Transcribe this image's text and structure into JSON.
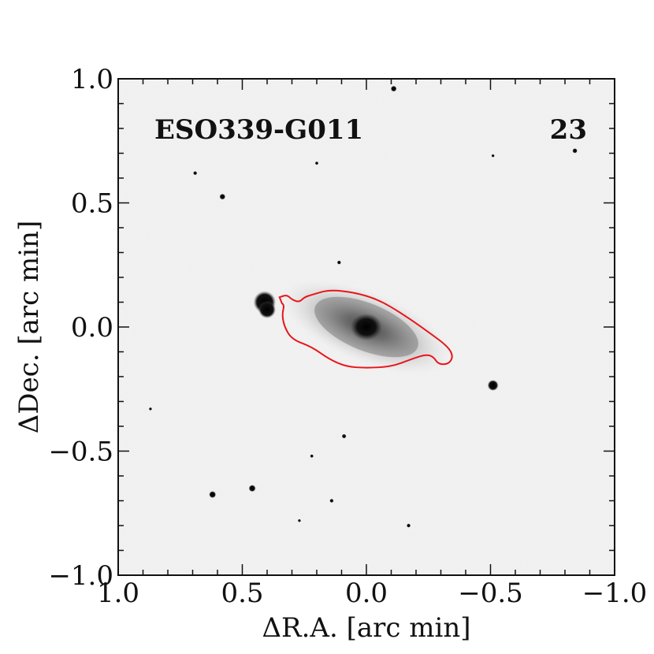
{
  "chart_data": {
    "type": "image",
    "object_name": "ESO339-G011",
    "panel_number": "23",
    "xlabel": "ΔR.A. [arc min]",
    "ylabel": "ΔDec. [arc min]",
    "xlim": [
      1.0,
      -1.0
    ],
    "ylim": [
      -1.0,
      1.0
    ],
    "x_ticks": [
      {
        "value": 1.0,
        "label": "1.0"
      },
      {
        "value": 0.5,
        "label": "0.5"
      },
      {
        "value": 0.0,
        "label": "0.0"
      },
      {
        "value": -0.5,
        "label": "−0.5"
      },
      {
        "value": -1.0,
        "label": "−1.0"
      }
    ],
    "y_ticks": [
      {
        "value": 1.0,
        "label": "1.0"
      },
      {
        "value": 0.5,
        "label": "0.5"
      },
      {
        "value": 0.0,
        "label": "0.0"
      },
      {
        "value": -0.5,
        "label": "−0.5"
      },
      {
        "value": -1.0,
        "label": "−1.0"
      }
    ],
    "contour_color": "#e8161b",
    "stars": [
      {
        "ra": 0.41,
        "dec": 0.1,
        "r": 0.045
      },
      {
        "ra": 0.4,
        "dec": 0.07,
        "r": 0.035
      },
      {
        "ra": -0.51,
        "dec": -0.235,
        "r": 0.022
      },
      {
        "ra": -0.11,
        "dec": 0.96,
        "r": 0.012
      },
      {
        "ra": -0.84,
        "dec": 0.71,
        "r": 0.01
      },
      {
        "ra": 0.58,
        "dec": 0.525,
        "r": 0.012
      },
      {
        "ra": 0.69,
        "dec": 0.62,
        "r": 0.008
      },
      {
        "ra": 0.2,
        "dec": 0.66,
        "r": 0.007
      },
      {
        "ra": 0.11,
        "dec": 0.26,
        "r": 0.008
      },
      {
        "ra": 0.09,
        "dec": -0.44,
        "r": 0.009
      },
      {
        "ra": 0.22,
        "dec": -0.52,
        "r": 0.007
      },
      {
        "ra": 0.14,
        "dec": -0.7,
        "r": 0.008
      },
      {
        "ra": 0.46,
        "dec": -0.65,
        "r": 0.014
      },
      {
        "ra": 0.62,
        "dec": -0.675,
        "r": 0.014
      },
      {
        "ra": -0.17,
        "dec": -0.8,
        "r": 0.008
      },
      {
        "ra": 0.87,
        "dec": -0.33,
        "r": 0.005
      },
      {
        "ra": -0.51,
        "dec": 0.69,
        "r": 0.005
      },
      {
        "ra": 0.27,
        "dec": -0.78,
        "r": 0.005
      }
    ],
    "contour_points": [
      [
        0.35,
        0.12
      ],
      [
        0.32,
        0.13
      ],
      [
        0.3,
        0.11
      ],
      [
        0.27,
        0.1
      ],
      [
        0.25,
        0.12
      ],
      [
        0.22,
        0.13
      ],
      [
        0.15,
        0.15
      ],
      [
        0.05,
        0.14
      ],
      [
        -0.05,
        0.11
      ],
      [
        -0.15,
        0.05
      ],
      [
        -0.25,
        -0.02
      ],
      [
        -0.33,
        -0.08
      ],
      [
        -0.35,
        -0.12
      ],
      [
        -0.33,
        -0.15
      ],
      [
        -0.29,
        -0.15
      ],
      [
        -0.27,
        -0.12
      ],
      [
        -0.24,
        -0.11
      ],
      [
        -0.18,
        -0.13
      ],
      [
        -0.1,
        -0.16
      ],
      [
        0.0,
        -0.165
      ],
      [
        0.08,
        -0.16
      ],
      [
        0.15,
        -0.13
      ],
      [
        0.22,
        -0.08
      ],
      [
        0.3,
        -0.05
      ],
      [
        0.33,
        0.0
      ],
      [
        0.34,
        0.05
      ],
      [
        0.33,
        0.09
      ],
      [
        0.35,
        0.1
      ]
    ]
  }
}
